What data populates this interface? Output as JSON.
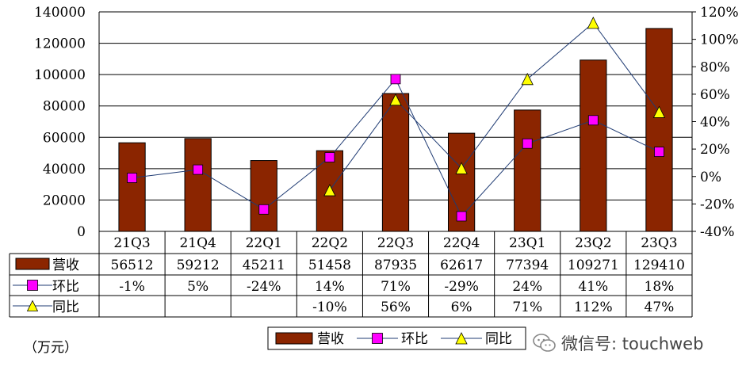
{
  "chart_data": {
    "type": "bar",
    "categories": [
      "21Q3",
      "21Q4",
      "22Q1",
      "22Q2",
      "22Q3",
      "22Q4",
      "23Q1",
      "23Q2",
      "23Q3"
    ],
    "series": [
      {
        "name": "营收",
        "kind": "bar",
        "axis": "left",
        "values": [
          56512,
          59212,
          45211,
          51458,
          87935,
          62617,
          77394,
          109271,
          129410
        ],
        "labels": [
          "56512",
          "59212",
          "45211",
          "51458",
          "87935",
          "62617",
          "77394",
          "109271",
          "129410"
        ]
      },
      {
        "name": "环比",
        "kind": "line",
        "axis": "right",
        "values": [
          -1,
          5,
          -24,
          14,
          71,
          -29,
          24,
          41,
          18
        ],
        "labels": [
          "-1%",
          "5%",
          "-24%",
          "14%",
          "71%",
          "-29%",
          "24%",
          "41%",
          "18%"
        ]
      },
      {
        "name": "同比",
        "kind": "line",
        "axis": "right",
        "values": [
          null,
          null,
          null,
          -10,
          56,
          6,
          71,
          112,
          47
        ],
        "labels": [
          "",
          "",
          "",
          "-10%",
          "56%",
          "6%",
          "71%",
          "112%",
          "47%"
        ]
      }
    ],
    "ylim_left": [
      0,
      140000
    ],
    "yticks_left": [
      "0",
      "20000",
      "40000",
      "60000",
      "80000",
      "100000",
      "120000",
      "140000"
    ],
    "ylim_right": [
      -40,
      120
    ],
    "yticks_right": [
      "-40%",
      "-20%",
      "0%",
      "20%",
      "40%",
      "60%",
      "80%",
      "100%",
      "120%"
    ],
    "unit_label": "（万元）",
    "legend_position": "bottom",
    "grid": true
  },
  "colors": {
    "bar": "#8B2500",
    "qoq_marker": "#FF00FF",
    "yoy_marker": "#FFFF00",
    "line": "#1f3b73"
  },
  "watermark": "微信号: touchweb"
}
